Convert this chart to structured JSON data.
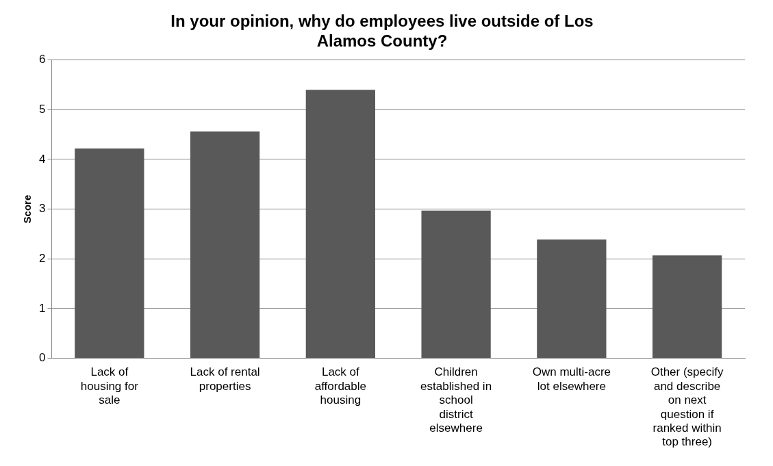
{
  "chart_data": {
    "type": "bar",
    "title": "In your opinion, why do employees live outside of Los Alamos County?",
    "ylabel": "Score",
    "categories": [
      "Lack of housing for sale",
      "Lack of rental properties",
      "Lack of affordable housing",
      "Children established in school district elsewhere",
      "Own multi-acre lot elsewhere",
      "Other (specify and describe on next question if ranked within top three)"
    ],
    "values": [
      4.22,
      4.56,
      5.4,
      2.97,
      2.39,
      2.07
    ],
    "color": "#595959",
    "ylim": [
      0,
      6
    ],
    "yticks": [
      0,
      1,
      2,
      3,
      4,
      5,
      6
    ],
    "grid": "y",
    "legend": false
  }
}
